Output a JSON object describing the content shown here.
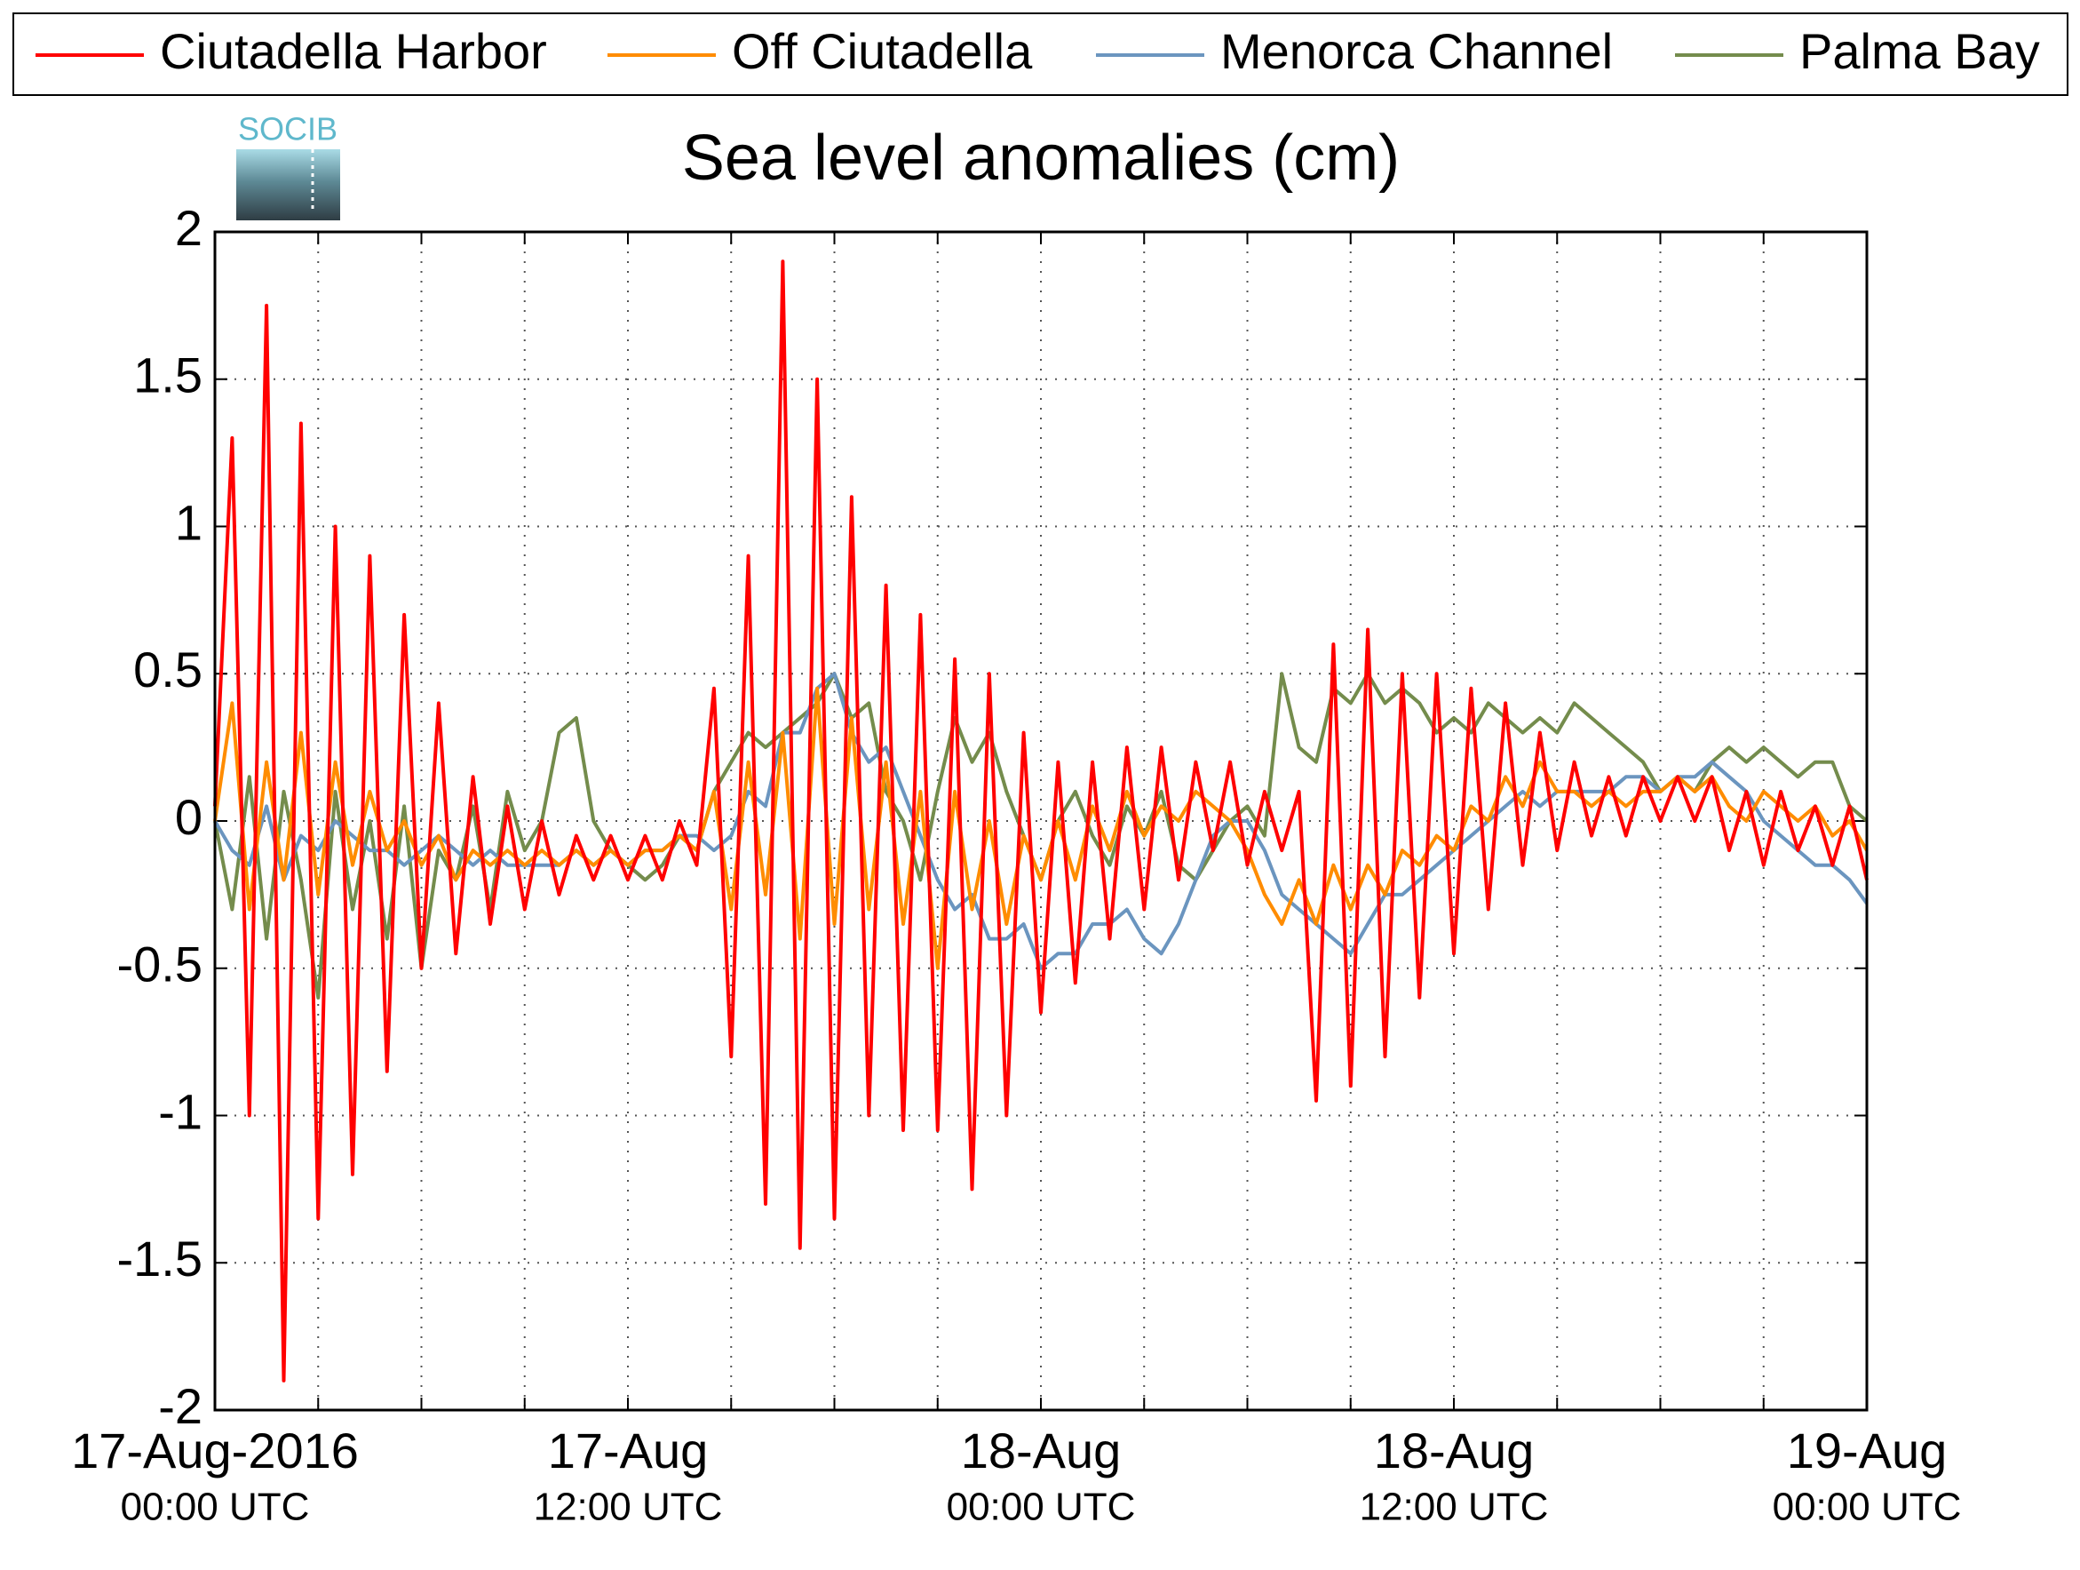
{
  "chart_data": {
    "type": "line",
    "title": "Sea level anomalies (cm)",
    "logo": "SOCIB",
    "xlim": [
      "2016-08-17T00:00",
      "2016-08-19T00:00"
    ],
    "xticks": [
      {
        "value": "2016-08-17T00:00",
        "label": [
          "17-Aug-2016",
          "00:00 UTC"
        ]
      },
      {
        "value": "2016-08-17T12:00",
        "label": [
          "17-Aug",
          "12:00 UTC"
        ]
      },
      {
        "value": "2016-08-18T00:00",
        "label": [
          "18-Aug",
          "00:00 UTC"
        ]
      },
      {
        "value": "2016-08-18T12:00",
        "label": [
          "18-Aug",
          "12:00 UTC"
        ]
      },
      {
        "value": "2016-08-19T00:00",
        "label": [
          "19-Aug",
          "00:00 UTC"
        ]
      }
    ],
    "xminor": [
      "2016-08-17T03:00",
      "2016-08-17T06:00",
      "2016-08-17T09:00",
      "2016-08-17T15:00",
      "2016-08-17T18:00",
      "2016-08-17T21:00",
      "2016-08-18T03:00",
      "2016-08-18T06:00",
      "2016-08-18T09:00",
      "2016-08-18T15:00",
      "2016-08-18T18:00",
      "2016-08-18T21:00"
    ],
    "ylim": [
      -2,
      2
    ],
    "yticks": [
      -2,
      -1.5,
      -1,
      -0.5,
      0,
      0.5,
      1,
      1.5,
      2
    ],
    "grid": true,
    "legend": "top",
    "x": [
      "2016-08-17T00:00",
      "2016-08-17T00:30",
      "2016-08-17T01:00",
      "2016-08-17T01:30",
      "2016-08-17T02:00",
      "2016-08-17T02:30",
      "2016-08-17T03:00",
      "2016-08-17T03:30",
      "2016-08-17T04:00",
      "2016-08-17T04:30",
      "2016-08-17T05:00",
      "2016-08-17T05:30",
      "2016-08-17T06:00",
      "2016-08-17T06:30",
      "2016-08-17T07:00",
      "2016-08-17T07:30",
      "2016-08-17T08:00",
      "2016-08-17T08:30",
      "2016-08-17T09:00",
      "2016-08-17T09:30",
      "2016-08-17T10:00",
      "2016-08-17T10:30",
      "2016-08-17T11:00",
      "2016-08-17T11:30",
      "2016-08-17T12:00",
      "2016-08-17T12:30",
      "2016-08-17T13:00",
      "2016-08-17T13:30",
      "2016-08-17T14:00",
      "2016-08-17T14:30",
      "2016-08-17T15:00",
      "2016-08-17T15:30",
      "2016-08-17T16:00",
      "2016-08-17T16:30",
      "2016-08-17T17:00",
      "2016-08-17T17:30",
      "2016-08-17T18:00",
      "2016-08-17T18:30",
      "2016-08-17T19:00",
      "2016-08-17T19:30",
      "2016-08-17T20:00",
      "2016-08-17T20:30",
      "2016-08-17T21:00",
      "2016-08-17T21:30",
      "2016-08-17T22:00",
      "2016-08-17T22:30",
      "2016-08-17T23:00",
      "2016-08-17T23:30",
      "2016-08-18T00:00",
      "2016-08-18T00:30",
      "2016-08-18T01:00",
      "2016-08-18T01:30",
      "2016-08-18T02:00",
      "2016-08-18T02:30",
      "2016-08-18T03:00",
      "2016-08-18T03:30",
      "2016-08-18T04:00",
      "2016-08-18T04:30",
      "2016-08-18T05:00",
      "2016-08-18T05:30",
      "2016-08-18T06:00",
      "2016-08-18T06:30",
      "2016-08-18T07:00",
      "2016-08-18T07:30",
      "2016-08-18T08:00",
      "2016-08-18T08:30",
      "2016-08-18T09:00",
      "2016-08-18T09:30",
      "2016-08-18T10:00",
      "2016-08-18T10:30",
      "2016-08-18T11:00",
      "2016-08-18T11:30",
      "2016-08-18T12:00",
      "2016-08-18T12:30",
      "2016-08-18T13:00",
      "2016-08-18T13:30",
      "2016-08-18T14:00",
      "2016-08-18T14:30",
      "2016-08-18T15:00",
      "2016-08-18T15:30",
      "2016-08-18T16:00",
      "2016-08-18T16:30",
      "2016-08-18T17:00",
      "2016-08-18T17:30",
      "2016-08-18T18:00",
      "2016-08-18T18:30",
      "2016-08-18T19:00",
      "2016-08-18T19:30",
      "2016-08-18T20:00",
      "2016-08-18T20:30",
      "2016-08-18T21:00",
      "2016-08-18T21:30",
      "2016-08-18T22:00",
      "2016-08-18T22:30",
      "2016-08-18T23:00",
      "2016-08-18T23:30",
      "2016-08-19T00:00"
    ],
    "series": [
      {
        "name": "Ciutadella Harbor",
        "color": "#ff0000",
        "values": [
          0.05,
          1.3,
          -1.0,
          1.75,
          -1.9,
          1.35,
          -1.35,
          1.0,
          -1.2,
          0.9,
          -0.85,
          0.7,
          -0.5,
          0.4,
          -0.45,
          0.15,
          -0.35,
          0.05,
          -0.3,
          0.0,
          -0.25,
          -0.05,
          -0.2,
          -0.05,
          -0.2,
          -0.05,
          -0.2,
          0.0,
          -0.15,
          0.45,
          -0.8,
          0.9,
          -1.3,
          1.9,
          -1.45,
          1.5,
          -1.35,
          1.1,
          -1.0,
          0.8,
          -1.05,
          0.7,
          -1.05,
          0.55,
          -1.25,
          0.5,
          -1.0,
          0.3,
          -0.65,
          0.2,
          -0.55,
          0.2,
          -0.4,
          0.25,
          -0.3,
          0.25,
          -0.2,
          0.2,
          -0.1,
          0.2,
          -0.15,
          0.1,
          -0.1,
          0.1,
          -0.95,
          0.6,
          -0.9,
          0.65,
          -0.8,
          0.5,
          -0.6,
          0.5,
          -0.45,
          0.45,
          -0.3,
          0.4,
          -0.15,
          0.3,
          -0.1,
          0.2,
          -0.05,
          0.15,
          -0.05,
          0.15,
          0.0,
          0.15,
          0.0,
          0.15,
          -0.1,
          0.1,
          -0.15,
          0.1,
          -0.1,
          0.05,
          -0.15,
          0.05,
          -0.2
        ]
      },
      {
        "name": "Off Ciutadella",
        "color": "#ff8c00",
        "values": [
          0.0,
          0.4,
          -0.3,
          0.2,
          -0.2,
          0.3,
          -0.25,
          0.2,
          -0.15,
          0.1,
          -0.1,
          0.0,
          -0.15,
          -0.05,
          -0.2,
          -0.1,
          -0.15,
          -0.1,
          -0.15,
          -0.1,
          -0.15,
          -0.1,
          -0.15,
          -0.1,
          -0.15,
          -0.1,
          -0.1,
          -0.05,
          -0.1,
          0.1,
          -0.3,
          0.2,
          -0.25,
          0.3,
          -0.4,
          0.45,
          -0.35,
          0.35,
          -0.3,
          0.2,
          -0.35,
          0.1,
          -0.5,
          0.1,
          -0.3,
          0.0,
          -0.35,
          -0.05,
          -0.2,
          0.0,
          -0.2,
          0.05,
          -0.1,
          0.1,
          -0.05,
          0.05,
          0.0,
          0.1,
          0.05,
          0.0,
          -0.1,
          -0.25,
          -0.35,
          -0.2,
          -0.35,
          -0.15,
          -0.3,
          -0.15,
          -0.25,
          -0.1,
          -0.15,
          -0.05,
          -0.1,
          0.05,
          0.0,
          0.15,
          0.05,
          0.2,
          0.1,
          0.1,
          0.05,
          0.1,
          0.05,
          0.1,
          0.1,
          0.15,
          0.1,
          0.15,
          0.05,
          0.0,
          0.1,
          0.05,
          0.0,
          0.05,
          -0.05,
          0.0,
          -0.1
        ]
      },
      {
        "name": "Menorca Channel",
        "color": "#6b95bf",
        "values": [
          0.0,
          -0.1,
          -0.15,
          0.05,
          -0.2,
          -0.05,
          -0.1,
          0.0,
          -0.05,
          -0.1,
          -0.1,
          -0.15,
          -0.1,
          -0.05,
          -0.1,
          -0.15,
          -0.1,
          -0.15,
          -0.15,
          -0.15,
          -0.15,
          -0.1,
          -0.15,
          -0.1,
          -0.15,
          -0.1,
          -0.1,
          -0.05,
          -0.05,
          -0.1,
          -0.05,
          0.1,
          0.05,
          0.3,
          0.3,
          0.45,
          0.5,
          0.3,
          0.2,
          0.25,
          0.1,
          -0.05,
          -0.2,
          -0.3,
          -0.25,
          -0.4,
          -0.4,
          -0.35,
          -0.5,
          -0.45,
          -0.45,
          -0.35,
          -0.35,
          -0.3,
          -0.4,
          -0.45,
          -0.35,
          -0.2,
          -0.05,
          0.0,
          0.0,
          -0.1,
          -0.25,
          -0.3,
          -0.35,
          -0.4,
          -0.45,
          -0.35,
          -0.25,
          -0.25,
          -0.2,
          -0.15,
          -0.1,
          -0.05,
          0.0,
          0.05,
          0.1,
          0.05,
          0.1,
          0.1,
          0.1,
          0.1,
          0.15,
          0.15,
          0.1,
          0.15,
          0.15,
          0.2,
          0.15,
          0.1,
          0.0,
          -0.05,
          -0.1,
          -0.15,
          -0.15,
          -0.2,
          -0.28
        ]
      },
      {
        "name": "Palma Bay",
        "color": "#748c4c",
        "values": [
          0.0,
          -0.3,
          0.15,
          -0.4,
          0.1,
          -0.2,
          -0.6,
          0.1,
          -0.3,
          0.0,
          -0.4,
          0.05,
          -0.5,
          -0.1,
          -0.2,
          0.05,
          -0.3,
          0.1,
          -0.1,
          0.0,
          0.3,
          0.35,
          0.0,
          -0.1,
          -0.15,
          -0.2,
          -0.15,
          -0.05,
          -0.1,
          0.1,
          0.2,
          0.3,
          0.25,
          0.3,
          0.35,
          0.4,
          0.5,
          0.35,
          0.4,
          0.1,
          0.0,
          -0.2,
          0.1,
          0.35,
          0.2,
          0.3,
          0.1,
          -0.05,
          -0.2,
          0.0,
          0.1,
          -0.05,
          -0.15,
          0.05,
          -0.05,
          0.1,
          -0.15,
          -0.2,
          -0.1,
          0.0,
          0.05,
          -0.05,
          0.5,
          0.25,
          0.2,
          0.45,
          0.4,
          0.5,
          0.4,
          0.45,
          0.4,
          0.3,
          0.35,
          0.3,
          0.4,
          0.35,
          0.3,
          0.35,
          0.3,
          0.4,
          0.35,
          0.3,
          0.25,
          0.2,
          0.1,
          0.15,
          0.1,
          0.2,
          0.25,
          0.2,
          0.25,
          0.2,
          0.15,
          0.2,
          0.2,
          0.05,
          0.0
        ]
      }
    ]
  }
}
